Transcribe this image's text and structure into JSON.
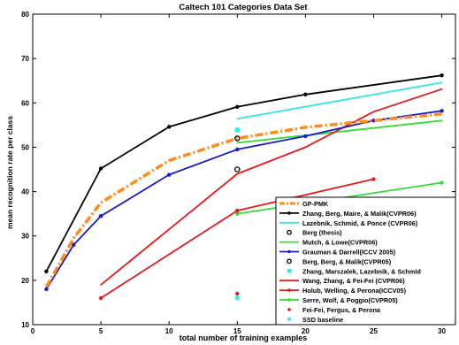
{
  "chart_data": {
    "type": "line",
    "title": "Caltech 101 Categories Data Set",
    "xlabel": "total number of training examples",
    "ylabel": "mean recognition rate per class",
    "xlim": [
      0,
      31
    ],
    "ylim": [
      10,
      80
    ],
    "x_ticks": [
      0,
      5,
      10,
      15,
      20,
      25,
      30
    ],
    "y_ticks": [
      10,
      20,
      30,
      40,
      50,
      60,
      70,
      80
    ],
    "grid": false,
    "legend_position": "bottom-right",
    "series": [
      {
        "name": "GP-PMK",
        "color": "#ff8c1a",
        "style": "dashdot",
        "marker": "none",
        "width": 3.5,
        "points": [
          [
            1,
            18.5
          ],
          [
            3,
            29.5
          ],
          [
            5,
            37.5
          ],
          [
            10,
            47
          ],
          [
            15,
            52
          ],
          [
            20,
            54.5
          ],
          [
            25,
            56
          ],
          [
            30,
            57.5
          ]
        ]
      },
      {
        "name": "Zhang, Berg, Maire, & Malik(CVPR06)",
        "color": "#000000",
        "style": "solid",
        "marker": "dot",
        "width": 1.8,
        "points": [
          [
            1,
            22
          ],
          [
            5,
            45.2
          ],
          [
            10,
            54.6
          ],
          [
            15,
            59.1
          ],
          [
            20,
            61.9
          ],
          [
            30,
            66.2
          ]
        ]
      },
      {
        "name": "Lazebnik, Schmid, & Ponce (CVPR06)",
        "color": "#33e6e6",
        "style": "solid",
        "marker": "none",
        "width": 1.8,
        "points": [
          [
            15,
            56.4
          ],
          [
            30,
            64.6
          ]
        ]
      },
      {
        "name": "Berg (thesis)",
        "color": "#000000",
        "style": "none",
        "marker": "ring",
        "width": 1,
        "points": [
          [
            15,
            52
          ]
        ]
      },
      {
        "name": "Mutch, & Lowe(CVPR06)",
        "color": "#33dd33",
        "style": "solid",
        "marker": "none",
        "width": 1.8,
        "points": [
          [
            15,
            51
          ],
          [
            30,
            56
          ]
        ]
      },
      {
        "name": "Grauman & Darrell(ICCV 2005)",
        "color": "#1a1acc",
        "style": "solid",
        "marker": "dot",
        "width": 1.8,
        "points": [
          [
            1,
            18
          ],
          [
            3,
            28
          ],
          [
            5,
            34.5
          ],
          [
            10,
            43.8
          ],
          [
            15,
            49.5
          ],
          [
            20,
            52.5
          ],
          [
            25,
            56
          ],
          [
            30,
            58.2
          ]
        ]
      },
      {
        "name": "Berg, Berg, & Malik(CVPR05)",
        "color": "#000000",
        "style": "none",
        "marker": "ring",
        "width": 1,
        "points": [
          [
            15,
            45
          ]
        ]
      },
      {
        "name": "Zhang, Marszalek, Lazebnik, & Schmid",
        "color": "#33e6e6",
        "style": "none",
        "marker": "square",
        "width": 1,
        "points": [
          [
            15,
            53.9
          ]
        ]
      },
      {
        "name": "Wang, Zhang, & Fei-Fei (CVPR06)",
        "color": "#e61a1a",
        "style": "solid",
        "marker": "none",
        "width": 1.8,
        "points": [
          [
            5,
            19
          ],
          [
            15,
            44
          ],
          [
            20,
            50
          ],
          [
            25,
            58
          ],
          [
            30,
            63.1
          ]
        ]
      },
      {
        "name": "Serre, Wolf, & Poggio(CVPR05)",
        "color": "#33dd33",
        "style": "solid",
        "marker": "dot",
        "width": 1.8,
        "points": [
          [
            15,
            35
          ],
          [
            30,
            42
          ]
        ]
      },
      {
        "name": "Holub, Welling, & Perona(ICCV05)",
        "color": "#e61a1a",
        "style": "solid",
        "marker": "dot",
        "width": 1.8,
        "points": [
          [
            5,
            16
          ],
          [
            15,
            35.7
          ],
          [
            25,
            42.8
          ]
        ]
      },
      {
        "name": "Fei-Fei, Fergus, & Perona",
        "color": "#e61a1a",
        "style": "none",
        "marker": "dot",
        "width": 1,
        "points": [
          [
            15,
            17
          ]
        ]
      },
      {
        "name": "SSD baseline",
        "color": "#33e6e6",
        "style": "none",
        "marker": "star",
        "width": 1,
        "points": [
          [
            15,
            16
          ]
        ]
      }
    ],
    "legend_order": [
      "GP-PMK",
      "Zhang, Berg, Maire, & Malik(CVPR06)",
      "Lazebnik, Schmid, & Ponce (CVPR06)",
      "Berg (thesis)",
      "Mutch, & Lowe(CVPR06)",
      "Grauman & Darrell(ICCV 2005)",
      "Berg, Berg, & Malik(CVPR05)",
      "Zhang, Marszalek, Lazebnik, & Schmid",
      "Wang, Zhang, & Fei-Fei (CVPR06)",
      "Holub, Welling, & Perona(ICCV05)",
      "Serre, Wolf, & Poggio(CVPR05)",
      "Fei-Fei, Fergus, & Perona",
      "SSD baseline"
    ]
  }
}
